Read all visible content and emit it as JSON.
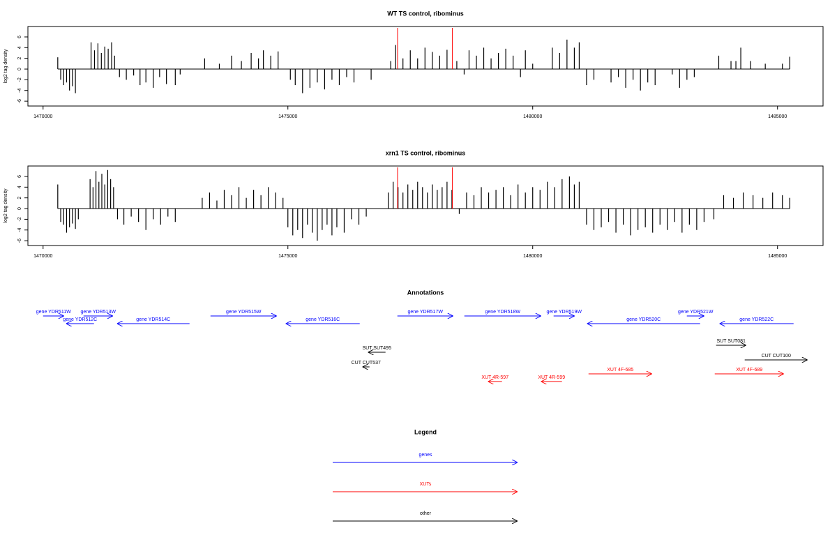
{
  "chart_data": [
    {
      "type": "bar",
      "title": "WT TS control, ribominus",
      "y_label": "log2 tag density",
      "color": "#000000",
      "xlim": [
        1469690,
        1485930
      ],
      "xticks": [
        1470000,
        1475000,
        1480000,
        1485000
      ],
      "ylim": [
        -6.9,
        7.95
      ],
      "yticks": [
        -6,
        -4,
        -2,
        0,
        2,
        4,
        6
      ],
      "markers": [
        1477240,
        1478360
      ],
      "marker_color": "#ff0000",
      "x": [
        1470300,
        1470360,
        1470420,
        1470480,
        1470540,
        1470600,
        1470660,
        1470980,
        1471050,
        1471120,
        1471190,
        1471260,
        1471330,
        1471400,
        1471460,
        1471560,
        1471700,
        1471850,
        1471980,
        1472100,
        1472250,
        1472380,
        1472520,
        1472700,
        1472800,
        1473300,
        1473600,
        1473850,
        1474050,
        1474250,
        1474400,
        1474500,
        1474650,
        1474800,
        1475050,
        1475150,
        1475300,
        1475450,
        1475600,
        1475750,
        1475900,
        1476050,
        1476200,
        1476350,
        1476700,
        1477100,
        1477200,
        1477350,
        1477500,
        1477650,
        1477800,
        1477950,
        1478100,
        1478250,
        1478450,
        1478600,
        1478700,
        1478850,
        1479000,
        1479150,
        1479300,
        1479450,
        1479600,
        1479750,
        1479850,
        1480000,
        1480400,
        1480550,
        1480700,
        1480850,
        1480950,
        1481100,
        1481250,
        1481600,
        1481750,
        1481900,
        1482050,
        1482200,
        1482350,
        1482500,
        1482850,
        1483000,
        1483150,
        1483300,
        1483800,
        1484050,
        1484150,
        1484250,
        1484450,
        1484750,
        1485100,
        1485250
      ],
      "values": [
        2.2,
        -2.0,
        -3.0,
        -2.5,
        -4.0,
        -3.2,
        -4.5,
        5.0,
        3.5,
        4.8,
        3.0,
        4.2,
        3.8,
        5.0,
        2.5,
        -1.5,
        -2.0,
        -1.2,
        -3.0,
        -2.5,
        -3.5,
        -1.5,
        -2.8,
        -3.0,
        -1.0,
        2.0,
        1.0,
        2.5,
        1.5,
        3.0,
        2.0,
        3.5,
        2.5,
        3.3,
        -2.0,
        -3.0,
        -4.5,
        -3.5,
        -2.5,
        -3.8,
        -2.0,
        -3.0,
        -1.5,
        -2.5,
        -2.0,
        1.5,
        4.5,
        2.0,
        3.5,
        2.0,
        4.0,
        3.2,
        2.5,
        3.6,
        1.5,
        -1.0,
        3.5,
        2.5,
        4.0,
        2.0,
        3.0,
        3.8,
        2.5,
        -1.5,
        3.5,
        1.0,
        4.0,
        3.0,
        5.5,
        4.0,
        5.0,
        -3.0,
        -2.0,
        -2.5,
        -1.5,
        -3.5,
        -2.0,
        -4.0,
        -2.5,
        -3.0,
        -1.0,
        -3.5,
        -2.0,
        -1.5,
        2.5,
        1.5,
        1.5,
        4.0,
        1.5,
        1.0,
        1.0,
        2.3
      ]
    },
    {
      "type": "bar",
      "title": "xrn1 TS control, ribominus",
      "y_label": "log2 tag density",
      "color": "#000000",
      "xlim": [
        1469690,
        1485930
      ],
      "xticks": [
        1470000,
        1475000,
        1480000,
        1485000
      ],
      "ylim": [
        -6.9,
        7.95
      ],
      "yticks": [
        -6,
        -4,
        -2,
        0,
        2,
        4,
        6
      ],
      "markers": [
        1477240,
        1478360
      ],
      "marker_color": "#ff0000",
      "x": [
        1470300,
        1470360,
        1470420,
        1470480,
        1470540,
        1470600,
        1470660,
        1470720,
        1470960,
        1471020,
        1471080,
        1471140,
        1471200,
        1471260,
        1471320,
        1471380,
        1471440,
        1471520,
        1471650,
        1471800,
        1471950,
        1472100,
        1472250,
        1472400,
        1472550,
        1472700,
        1473250,
        1473400,
        1473550,
        1473700,
        1473850,
        1474000,
        1474150,
        1474300,
        1474450,
        1474600,
        1474750,
        1474900,
        1475000,
        1475100,
        1475200,
        1475300,
        1475400,
        1475500,
        1475600,
        1475700,
        1475800,
        1475900,
        1476000,
        1476150,
        1476300,
        1476450,
        1476600,
        1477050,
        1477150,
        1477250,
        1477350,
        1477450,
        1477550,
        1477650,
        1477750,
        1477850,
        1477950,
        1478050,
        1478150,
        1478250,
        1478350,
        1478500,
        1478650,
        1478800,
        1478950,
        1479100,
        1479250,
        1479400,
        1479550,
        1479700,
        1479850,
        1480000,
        1480150,
        1480300,
        1480450,
        1480600,
        1480750,
        1480850,
        1480950,
        1481100,
        1481250,
        1481400,
        1481550,
        1481700,
        1481850,
        1482000,
        1482150,
        1482300,
        1482450,
        1482600,
        1482750,
        1482900,
        1483050,
        1483200,
        1483350,
        1483500,
        1483700,
        1483900,
        1484100,
        1484300,
        1484500,
        1484700,
        1484900,
        1485100,
        1485250
      ],
      "values": [
        4.5,
        -2.5,
        -3.0,
        -4.5,
        -3.5,
        -2.8,
        -3.8,
        -2.0,
        5.5,
        4.0,
        7.0,
        5.0,
        6.5,
        4.5,
        7.2,
        5.5,
        4.0,
        -2.0,
        -3.0,
        -1.5,
        -2.5,
        -4.0,
        -2.0,
        -3.0,
        -1.5,
        -2.5,
        2.0,
        3.0,
        1.5,
        3.5,
        2.5,
        4.0,
        2.0,
        3.5,
        2.5,
        4.0,
        3.0,
        2.0,
        -3.5,
        -5.0,
        -4.0,
        -5.5,
        -3.0,
        -4.5,
        -6.0,
        -4.0,
        -3.0,
        -5.0,
        -3.5,
        -4.5,
        -2.0,
        -3.0,
        -1.5,
        3.0,
        5.0,
        4.0,
        3.0,
        4.5,
        3.5,
        5.0,
        4.0,
        3.0,
        4.5,
        3.5,
        4.0,
        5.0,
        3.5,
        -1.0,
        3.0,
        2.5,
        4.0,
        3.0,
        3.5,
        4.0,
        2.5,
        4.5,
        3.0,
        4.0,
        3.5,
        5.0,
        4.0,
        5.5,
        6.0,
        4.5,
        5.0,
        -3.0,
        -4.0,
        -3.5,
        -2.5,
        -4.5,
        -3.0,
        -5.0,
        -4.0,
        -3.5,
        -4.5,
        -3.0,
        -4.0,
        -2.5,
        -4.5,
        -3.0,
        -4.0,
        -2.5,
        -2.0,
        2.5,
        2.0,
        3.0,
        2.5,
        2.0,
        3.0,
        2.5,
        2.0
      ]
    }
  ],
  "annotations": {
    "title": "Annotations",
    "features": [
      {
        "label": "gene YDR511W",
        "start": 1470000,
        "end": 1470427,
        "color": "#0000ff"
      },
      {
        "label": "gene YDR513W",
        "start": 1470826,
        "end": 1471425,
        "color": "#0000ff"
      },
      {
        "label": "gene YDR512C",
        "start": 1471040,
        "end": 1470470,
        "color": "#0000ff"
      },
      {
        "label": "gene YDR514C",
        "start": 1472991,
        "end": 1471510,
        "color": "#0000ff"
      },
      {
        "label": "gene YDR515W",
        "start": 1473419,
        "end": 1474772,
        "color": "#0000ff"
      },
      {
        "label": "gene YDR516C",
        "start": 1476467,
        "end": 1474957,
        "color": "#0000ff"
      },
      {
        "label": "gene YDR517W",
        "start": 1477236,
        "end": 1478376,
        "color": "#0000ff"
      },
      {
        "label": "gene YDR518W",
        "start": 1478604,
        "end": 1480171,
        "color": "#0000ff"
      },
      {
        "label": "gene YDR519W",
        "start": 1480427,
        "end": 1480855,
        "color": "#0000ff"
      },
      {
        "label": "gene YDR520C",
        "start": 1483419,
        "end": 1481111,
        "color": "#0000ff"
      },
      {
        "label": "gene YDR521W",
        "start": 1483148,
        "end": 1483504,
        "color": "#0000ff"
      },
      {
        "label": "gene YDR522C",
        "start": 1485328,
        "end": 1483818,
        "color": "#0000ff"
      },
      {
        "label": "SUT SUT495",
        "start": 1476994,
        "end": 1476638,
        "color": "#000000"
      },
      {
        "label": "CUT CUT537",
        "start": 1476667,
        "end": 1476524,
        "color": "#000000"
      },
      {
        "label": "SUT SUT081",
        "start": 1483746,
        "end": 1484359,
        "color": "#000000"
      },
      {
        "label": "CUT CUT100",
        "start": 1484330,
        "end": 1485613,
        "color": "#000000"
      },
      {
        "label": "XUT 4R-597",
        "start": 1479373,
        "end": 1479088,
        "color": "#ff0000"
      },
      {
        "label": "XUT 4R-599",
        "start": 1480598,
        "end": 1480171,
        "color": "#ff0000"
      },
      {
        "label": "XUT 4F-685",
        "start": 1481140,
        "end": 1482436,
        "color": "#ff0000"
      },
      {
        "label": "XUT 4F-689",
        "start": 1483718,
        "end": 1485128,
        "color": "#ff0000"
      }
    ]
  },
  "legend": {
    "title": "Legend",
    "items": [
      {
        "name": "genes",
        "color": "#0000ff"
      },
      {
        "name": "XUTs",
        "color": "#ff0000"
      },
      {
        "name": "other",
        "color": "#000000"
      }
    ]
  }
}
